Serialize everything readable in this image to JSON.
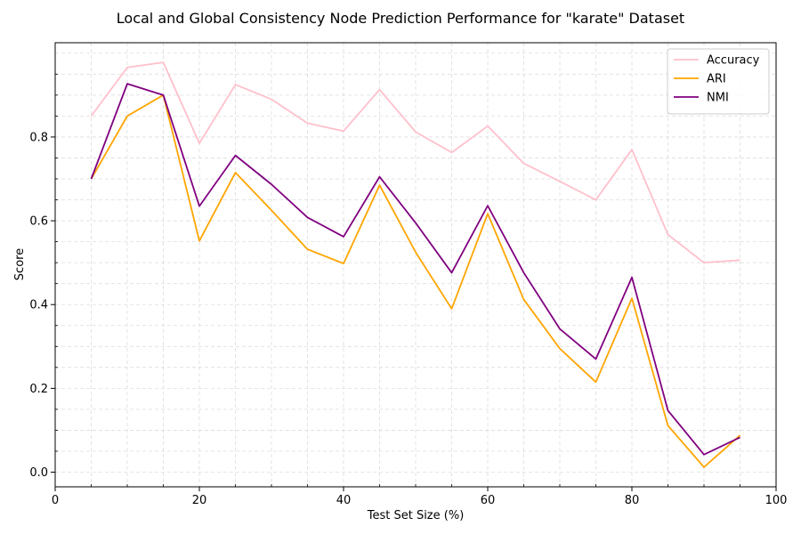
{
  "chart_data": {
    "type": "line",
    "title": "Local and Global Consistency Node Prediction Performance for \"karate\" Dataset",
    "xlabel": "Test Set Size (%)",
    "ylabel": "Score",
    "xlim": [
      0,
      100
    ],
    "ylim": [
      -0.035,
      1.025
    ],
    "x_ticks": [
      0,
      20,
      40,
      60,
      80,
      100
    ],
    "y_ticks": [
      0.0,
      0.2,
      0.4,
      0.6,
      0.8
    ],
    "x_tick_labels": [
      "0",
      "20",
      "40",
      "60",
      "80",
      "100"
    ],
    "y_tick_labels": [
      "0.0",
      "0.2",
      "0.4",
      "0.6",
      "0.8"
    ],
    "grid": true,
    "grid_style": "dashed",
    "legend_position": "top-right",
    "x": [
      5,
      10,
      15,
      20,
      25,
      30,
      35,
      40,
      45,
      50,
      55,
      60,
      65,
      70,
      75,
      80,
      85,
      90,
      95
    ],
    "series": [
      {
        "name": "Accuracy",
        "color": "#ffc0cb",
        "values": [
          0.85,
          0.966,
          0.978,
          0.785,
          0.925,
          0.89,
          0.833,
          0.814,
          0.913,
          0.812,
          0.763,
          0.826,
          0.737,
          0.694,
          0.65,
          0.77,
          0.567,
          0.5,
          0.506
        ]
      },
      {
        "name": "ARI",
        "color": "#ffa500",
        "values": [
          0.7,
          0.85,
          0.9,
          0.552,
          0.715,
          0.625,
          0.532,
          0.498,
          0.685,
          0.525,
          0.39,
          0.617,
          0.412,
          0.295,
          0.215,
          0.415,
          0.111,
          0.012,
          0.088
        ]
      },
      {
        "name": "NMI",
        "color": "#800080",
        "values": [
          0.7,
          0.927,
          0.9,
          0.635,
          0.756,
          0.687,
          0.608,
          0.562,
          0.705,
          0.595,
          0.476,
          0.636,
          0.476,
          0.342,
          0.27,
          0.465,
          0.147,
          0.042,
          0.083
        ]
      }
    ]
  }
}
